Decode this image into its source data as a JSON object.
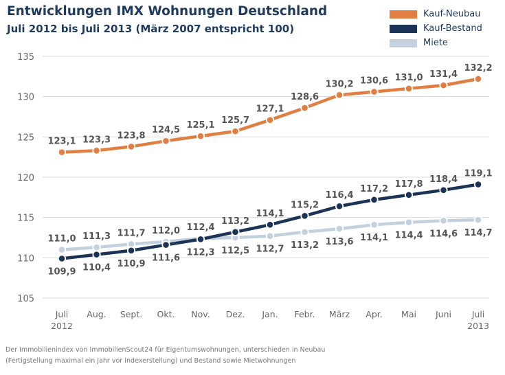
{
  "title": "Entwicklungen IMX Wohnungen Deutschland",
  "subtitle": "Juli 2012 bis Juli 2013 (März 2007 entspricht 100)",
  "footnote": {
    "line1": "Der Immobilienindex von ImmobilienScout24 für Eigentumswohnungen, unterschieden in Neubau",
    "line2": "(Fertigstellung maximal ein Jahr vor Indexerstellung) und Bestand sowie Mietwohnungen"
  },
  "colors": {
    "neubau": "#e07f41",
    "bestand": "#1b3356",
    "miete": "#c3d1de",
    "grid": "#dcdcdc",
    "axis_text": "#666666",
    "label_text": "#555555"
  },
  "chart_data": {
    "type": "line",
    "categories": [
      "Juli",
      "Aug.",
      "Sept.",
      "Okt.",
      "Nov.",
      "Dez.",
      "Jan.",
      "Febr.",
      "März",
      "Apr.",
      "Mai",
      "Juni",
      "Juli"
    ],
    "category_years": {
      "0": "2012",
      "12": "2013"
    },
    "ylim": [
      105,
      135
    ],
    "yticks": [
      105,
      110,
      115,
      120,
      125,
      130,
      135
    ],
    "grid": true,
    "legend_position": "top-right",
    "series": [
      {
        "name": "Kauf-Neubau",
        "key": "neubau",
        "values": [
          123.1,
          123.3,
          123.8,
          124.5,
          125.1,
          125.7,
          127.1,
          128.6,
          130.2,
          130.6,
          131.0,
          131.4,
          132.2
        ],
        "labels": [
          "123,1",
          "123,3",
          "123,8",
          "124,5",
          "125,1",
          "125,7",
          "127,1",
          "128,6",
          "130,2",
          "130,6",
          "131,0",
          "131,4",
          "132,2"
        ],
        "label_side": [
          "above",
          "above",
          "above",
          "above",
          "above",
          "above",
          "above",
          "above",
          "above",
          "above",
          "above",
          "above",
          "above"
        ]
      },
      {
        "name": "Kauf-Bestand",
        "key": "bestand",
        "values": [
          109.9,
          110.4,
          110.9,
          111.6,
          112.3,
          113.2,
          114.1,
          115.2,
          116.4,
          117.2,
          117.8,
          118.4,
          119.1
        ],
        "labels": [
          "109,9",
          "110,4",
          "110,9",
          "111,6",
          "112,3",
          "113,2",
          "114,1",
          "115,2",
          "116,4",
          "117,2",
          "117,8",
          "118,4",
          "119,1"
        ],
        "label_side": [
          "below",
          "below",
          "below",
          "below",
          "below",
          "above",
          "above",
          "above",
          "above",
          "above",
          "above",
          "above",
          "above"
        ]
      },
      {
        "name": "Miete",
        "key": "miete",
        "values": [
          111.0,
          111.3,
          111.7,
          112.0,
          112.4,
          112.5,
          112.7,
          113.2,
          113.6,
          114.1,
          114.4,
          114.6,
          114.7
        ],
        "labels": [
          "111,0",
          "111,3",
          "111,7",
          "112,0",
          "112,4",
          "112,5",
          "112,7",
          "113,2",
          "113,6",
          "114,1",
          "114,4",
          "114,6",
          "114,7"
        ],
        "label_side": [
          "above",
          "above",
          "above",
          "above",
          "above",
          "below",
          "below",
          "below",
          "below",
          "below",
          "below",
          "below",
          "below"
        ]
      }
    ]
  }
}
